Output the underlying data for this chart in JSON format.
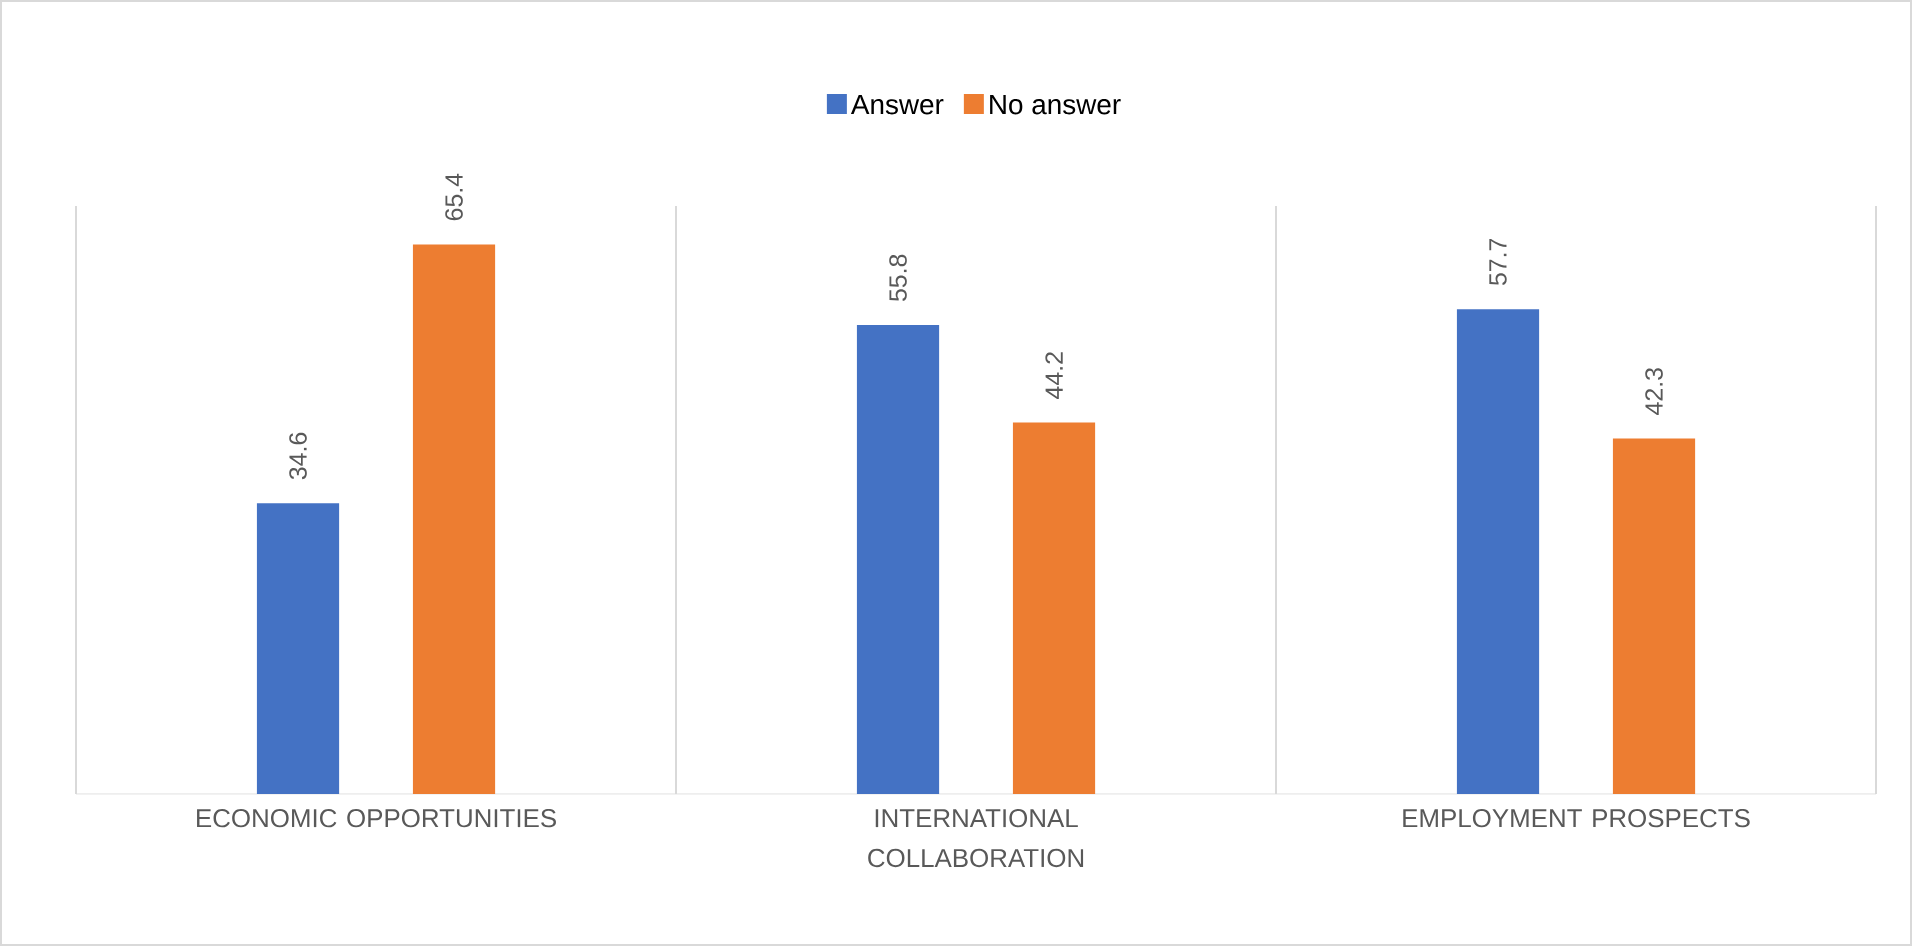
{
  "chart_data": {
    "type": "bar",
    "categories": [
      "ECONOMIC OPPORTUNITIES",
      "INTERNATIONAL COLLABORATION",
      "EMPLOYMENT PROSPECTS"
    ],
    "series": [
      {
        "name": "Answer",
        "color": "#4472c4",
        "values": [
          34.6,
          55.8,
          57.7
        ]
      },
      {
        "name": "No answer",
        "color": "#ed7d31",
        "values": [
          65.4,
          44.2,
          42.3
        ]
      }
    ],
    "data_labels": true,
    "legend": "top"
  }
}
